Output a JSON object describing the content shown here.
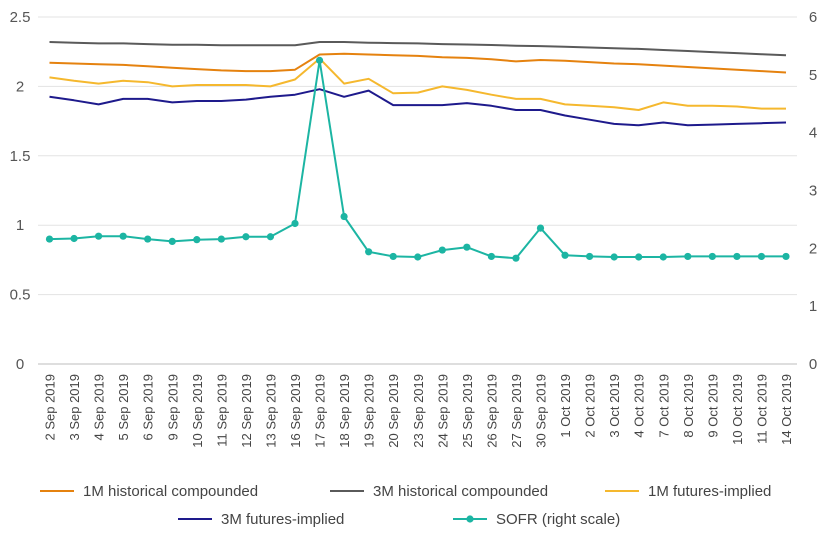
{
  "chart_data": {
    "type": "line",
    "title": "",
    "xlabel": "",
    "ylabel": "",
    "ylim": [
      0,
      2.5
    ],
    "y2lim": [
      0,
      6
    ],
    "yticks": [
      "0",
      "0.5",
      "1",
      "1.5",
      "2",
      "2.5"
    ],
    "y2ticks": [
      "0",
      "1",
      "2",
      "3",
      "4",
      "5",
      "6"
    ],
    "grid": true,
    "legend_position": "bottom",
    "x": [
      "2 Sep 2019",
      "3 Sep 2019",
      "4 Sep 2019",
      "5 Sep 2019",
      "6 Sep 2019",
      "9 Sep 2019",
      "10 Sep 2019",
      "11 Sep 2019",
      "12 Sep 2019",
      "13 Sep 2019",
      "16 Sep 2019",
      "17 Sep 2019",
      "18 Sep 2019",
      "19 Sep 2019",
      "20 Sep 2019",
      "23 Sep 2019",
      "24 Sep 2019",
      "25 Sep 2019",
      "26 Sep 2019",
      "27 Sep 2019",
      "30 Sep 2019",
      "1 Oct 2019",
      "2 Oct 2019",
      "3 Oct 2019",
      "4 Oct 2019",
      "7 Oct 2019",
      "8 Oct 2019",
      "9 Oct 2019",
      "10 Oct 2019",
      "11 Oct 2019",
      "14 Oct 2019"
    ],
    "series": [
      {
        "name": "1M historical compounded",
        "axis": "left",
        "color": "#E5820F",
        "markers": false,
        "values": [
          2.17,
          2.165,
          2.16,
          2.155,
          2.145,
          2.135,
          2.125,
          2.115,
          2.11,
          2.11,
          2.12,
          2.23,
          2.235,
          2.23,
          2.225,
          2.22,
          2.21,
          2.205,
          2.195,
          2.18,
          2.19,
          2.185,
          2.175,
          2.165,
          2.16,
          2.15,
          2.14,
          2.13,
          2.12,
          2.11,
          2.1
        ]
      },
      {
        "name": "3M historical compounded",
        "axis": "left",
        "color": "#5a5a5a",
        "markers": false,
        "values": [
          2.32,
          2.315,
          2.31,
          2.31,
          2.305,
          2.3,
          2.3,
          2.296,
          2.296,
          2.296,
          2.296,
          2.32,
          2.32,
          2.315,
          2.312,
          2.31,
          2.305,
          2.302,
          2.298,
          2.293,
          2.29,
          2.285,
          2.28,
          2.275,
          2.27,
          2.262,
          2.255,
          2.247,
          2.24,
          2.232,
          2.225
        ]
      },
      {
        "name": "1M futures-implied",
        "axis": "left",
        "color": "#F5B82E",
        "markers": false,
        "values": [
          2.065,
          2.04,
          2.02,
          2.04,
          2.03,
          2.0,
          2.01,
          2.01,
          2.01,
          2.0,
          2.05,
          2.2,
          2.02,
          2.055,
          1.95,
          1.955,
          2.0,
          1.975,
          1.94,
          1.91,
          1.91,
          1.87,
          1.86,
          1.85,
          1.83,
          1.885,
          1.86,
          1.86,
          1.855,
          1.84,
          1.84
        ]
      },
      {
        "name": "3M futures-implied",
        "axis": "left",
        "color": "#1E1A8C",
        "markers": false,
        "values": [
          1.925,
          1.9,
          1.87,
          1.91,
          1.91,
          1.885,
          1.895,
          1.895,
          1.905,
          1.925,
          1.94,
          1.98,
          1.925,
          1.97,
          1.865,
          1.865,
          1.865,
          1.88,
          1.86,
          1.83,
          1.83,
          1.79,
          1.76,
          1.73,
          1.72,
          1.74,
          1.72,
          1.725,
          1.73,
          1.735,
          1.74
        ]
      },
      {
        "name": "SOFR (right scale)",
        "axis": "right",
        "color": "#1CB5A3",
        "markers": true,
        "values": [
          2.16,
          2.17,
          2.21,
          2.21,
          2.16,
          2.12,
          2.15,
          2.16,
          2.2,
          2.2,
          2.43,
          5.25,
          2.55,
          1.94,
          1.86,
          1.85,
          1.97,
          2.02,
          1.86,
          1.83,
          2.35,
          1.88,
          1.86,
          1.85,
          1.85,
          1.85,
          1.86,
          1.86,
          1.86,
          1.86,
          1.86
        ]
      }
    ]
  }
}
